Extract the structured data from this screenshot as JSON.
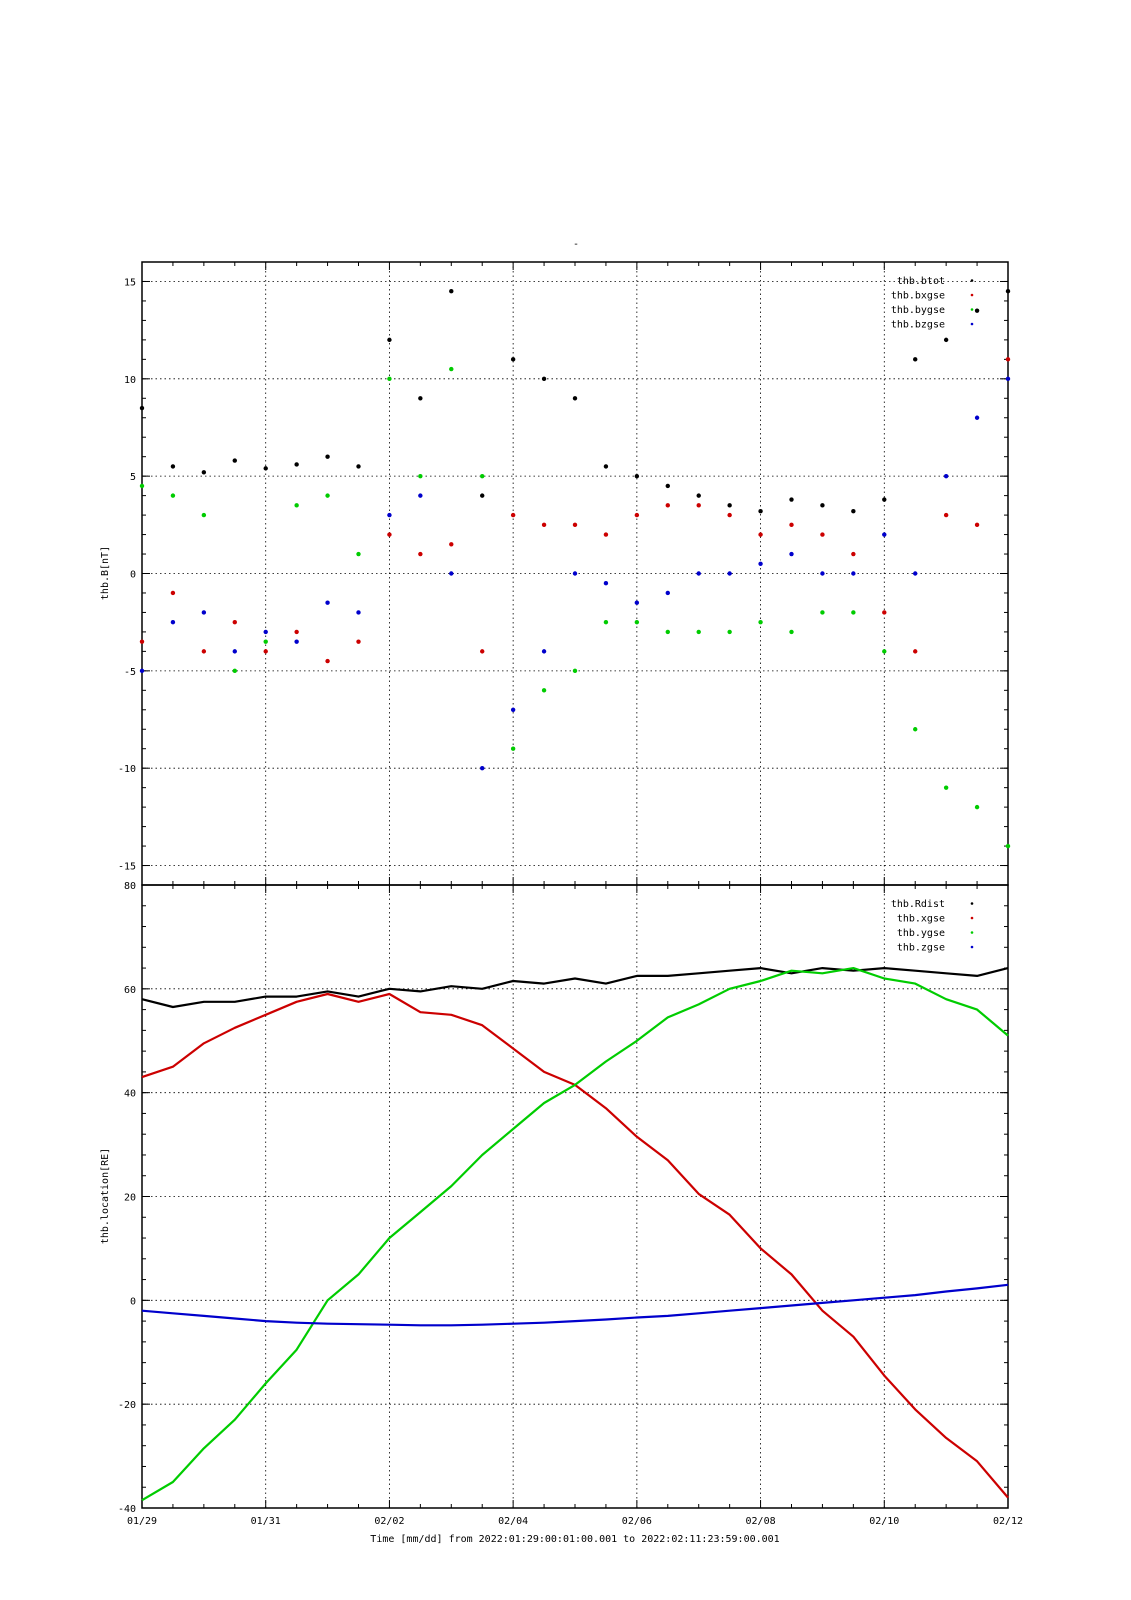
{
  "header": {
    "title": "-"
  },
  "footer": {
    "xlabel": "Time [mm/dd]  from 2022:01:29:00:01:00.001  to  2022:02:11:23:59:00.001"
  },
  "colors": {
    "black": "#000000",
    "red": "#cc0000",
    "green": "#00cc00",
    "blue": "#0000cc"
  },
  "chart_data": [
    {
      "type": "scatter",
      "ylabel": "thb.B[nT]",
      "ylim": [
        -16,
        16
      ],
      "yticks": [
        -15,
        -10,
        -5,
        0,
        5,
        10,
        15
      ],
      "xlim": [
        "01/29",
        "02/12"
      ],
      "grid": true,
      "legend_position": "top-right",
      "x": [
        "01/29",
        "01/29 12h",
        "01/30",
        "01/30 12h",
        "01/31",
        "01/31 12h",
        "02/01",
        "02/01 12h",
        "02/02",
        "02/02 12h",
        "02/03",
        "02/03 12h",
        "02/04",
        "02/04 12h",
        "02/05",
        "02/05 12h",
        "02/06",
        "02/06 12h",
        "02/07",
        "02/07 12h",
        "02/08",
        "02/08 12h",
        "02/09",
        "02/09 12h",
        "02/10",
        "02/10 12h",
        "02/11",
        "02/11 12h",
        "02/12"
      ],
      "series": [
        {
          "name": "thb.btot",
          "color": "#000000",
          "values": [
            8.5,
            5.5,
            5.2,
            5.8,
            5.4,
            5.6,
            6.0,
            5.5,
            12.0,
            9.0,
            14.5,
            4.0,
            11.0,
            10.0,
            9.0,
            5.5,
            5.0,
            4.5,
            4.0,
            3.5,
            3.2,
            3.8,
            3.5,
            3.2,
            3.8,
            11.0,
            12.0,
            13.5,
            14.5
          ]
        },
        {
          "name": "thb.bxgse",
          "color": "#cc0000",
          "values": [
            -3.5,
            -1.0,
            -4.0,
            -2.5,
            -4.0,
            -3.0,
            -4.5,
            -3.5,
            2.0,
            1.0,
            1.5,
            -4.0,
            3.0,
            2.5,
            2.5,
            2.0,
            3.0,
            3.5,
            3.5,
            3.0,
            2.0,
            2.5,
            2.0,
            1.0,
            -2.0,
            -4.0,
            3.0,
            2.5,
            11.0
          ]
        },
        {
          "name": "thb.bygse",
          "color": "#00cc00",
          "values": [
            4.5,
            4.0,
            3.0,
            -5.0,
            -3.5,
            3.5,
            4.0,
            1.0,
            10.0,
            5.0,
            10.5,
            5.0,
            -9.0,
            -6.0,
            -5.0,
            -2.5,
            -2.5,
            -3.0,
            -3.0,
            -3.0,
            -2.5,
            -3.0,
            -2.0,
            -2.0,
            -4.0,
            -8.0,
            -11.0,
            -12.0,
            -14.0
          ]
        },
        {
          "name": "thb.bzgse",
          "color": "#0000cc",
          "values": [
            -5.0,
            -2.5,
            -2.0,
            -4.0,
            -3.0,
            -3.5,
            -1.5,
            -2.0,
            3.0,
            4.0,
            0.0,
            -10.0,
            -7.0,
            -4.0,
            0.0,
            -0.5,
            -1.5,
            -1.0,
            0.0,
            0.0,
            0.5,
            1.0,
            0.0,
            0.0,
            2.0,
            0.0,
            5.0,
            8.0,
            10.0
          ]
        }
      ]
    },
    {
      "type": "line",
      "ylabel": "thb.location[RE]",
      "ylim": [
        -40,
        80
      ],
      "yticks": [
        -40,
        -20,
        0,
        20,
        40,
        60,
        80
      ],
      "xlabel": "Time [mm/dd]  from 2022:01:29:00:01:00.001  to  2022:02:11:23:59:00.001",
      "xticks": [
        "01/29",
        "01/31",
        "02/02",
        "02/04",
        "02/06",
        "02/08",
        "02/10",
        "02/12"
      ],
      "xlim": [
        "01/29",
        "02/12"
      ],
      "grid": true,
      "legend_position": "top-right",
      "x": [
        "01/29",
        "01/29 12h",
        "01/30",
        "01/30 12h",
        "01/31",
        "01/31 12h",
        "02/01",
        "02/01 12h",
        "02/02",
        "02/02 12h",
        "02/03",
        "02/03 12h",
        "02/04",
        "02/04 12h",
        "02/05",
        "02/05 12h",
        "02/06",
        "02/06 12h",
        "02/07",
        "02/07 12h",
        "02/08",
        "02/08 12h",
        "02/09",
        "02/09 12h",
        "02/10",
        "02/10 12h",
        "02/11",
        "02/11 12h",
        "02/12"
      ],
      "series": [
        {
          "name": "thb.Rdist",
          "color": "#000000",
          "values": [
            58,
            56.5,
            57.5,
            57.5,
            58.5,
            58.5,
            59.5,
            58.5,
            60,
            59.5,
            60.5,
            60,
            61.5,
            61,
            62,
            61,
            62.5,
            62.5,
            63,
            63.5,
            64,
            63,
            64,
            63.5,
            64,
            63.5,
            63,
            62.5,
            64
          ]
        },
        {
          "name": "thb.xgse",
          "color": "#cc0000",
          "values": [
            43,
            45,
            49.5,
            52.5,
            55,
            57.5,
            59,
            57.5,
            59,
            55.5,
            55,
            53,
            48.5,
            44,
            41.5,
            37,
            31.5,
            27,
            20.5,
            16.5,
            10,
            5,
            -2,
            -7,
            -14.5,
            -21,
            -26.5,
            -31,
            -38
          ]
        },
        {
          "name": "thb.ygse",
          "color": "#00cc00",
          "values": [
            -38.5,
            -35,
            -28.5,
            -23,
            -16,
            -9.5,
            0,
            5,
            12,
            17,
            22,
            28,
            33,
            38,
            41.5,
            46,
            50,
            54.5,
            57,
            60,
            61.5,
            63.5,
            63,
            64,
            62,
            61,
            58,
            56,
            51
          ]
        },
        {
          "name": "thb.zgse",
          "color": "#0000cc",
          "values": [
            -2,
            -2.5,
            -3,
            -3.5,
            -4,
            -4.3,
            -4.5,
            -4.6,
            -4.7,
            -4.8,
            -4.8,
            -4.7,
            -4.5,
            -4.3,
            -4,
            -3.7,
            -3.3,
            -3,
            -2.5,
            -2,
            -1.5,
            -1,
            -0.5,
            0,
            0.5,
            1,
            1.7,
            2.3,
            3
          ]
        }
      ]
    }
  ]
}
